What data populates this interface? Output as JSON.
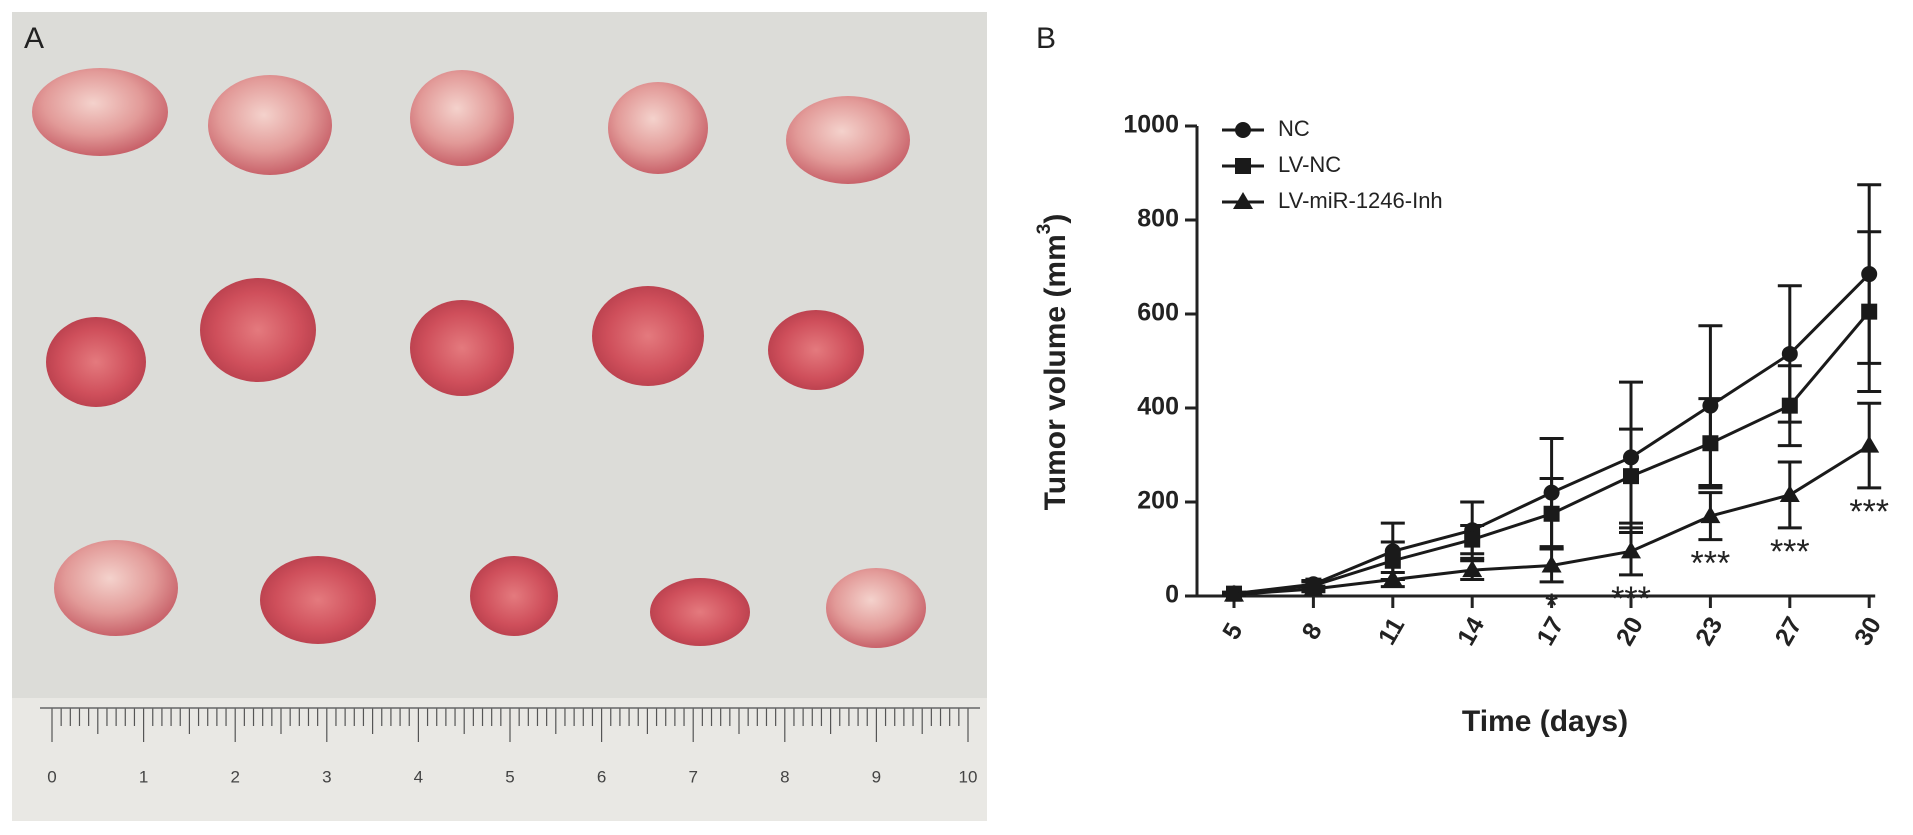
{
  "panel_a": {
    "label": "A",
    "ruler_labels": [
      "0",
      "1",
      "2",
      "3",
      "4",
      "5",
      "6",
      "7",
      "8",
      "9",
      "10"
    ]
  },
  "chart_data": {
    "type": "line",
    "panel_label": "B",
    "x_label": "Time (days)",
    "y_label": {
      "text": "Tumor volume (mm",
      "sup": "3",
      "end": ")"
    },
    "categories": [
      "5",
      "8",
      "11",
      "14",
      "17",
      "20",
      "23",
      "27",
      "30"
    ],
    "ylim": [
      0,
      1000
    ],
    "yticks": [
      0,
      200,
      400,
      600,
      800,
      1000
    ],
    "series": [
      {
        "name": "NC",
        "color": "#1a1a1a",
        "marker": "circle",
        "values": [
          5,
          25,
          95,
          140,
          220,
          295,
          405,
          515,
          685
        ],
        "errors": [
          3,
          8,
          60,
          60,
          115,
          160,
          170,
          145,
          190
        ]
      },
      {
        "name": "LV-NC",
        "color": "#1a1a1a",
        "marker": "square",
        "values": [
          5,
          22,
          75,
          120,
          175,
          255,
          325,
          405,
          605
        ],
        "errors": [
          3,
          8,
          40,
          30,
          75,
          100,
          95,
          85,
          170
        ]
      },
      {
        "name": "LV-miR-1246-Inh",
        "color": "#1a1a1a",
        "marker": "triangle",
        "values": [
          3,
          15,
          35,
          55,
          65,
          95,
          170,
          215,
          320
        ],
        "errors": [
          2,
          6,
          15,
          20,
          35,
          50,
          50,
          70,
          90
        ]
      }
    ],
    "annotations": [
      {
        "text": "*",
        "category": 4
      },
      {
        "text": "***",
        "category": 5
      },
      {
        "text": "***",
        "category": 6
      },
      {
        "text": "***",
        "category": 7
      },
      {
        "text": "***",
        "category": 8
      }
    ]
  }
}
